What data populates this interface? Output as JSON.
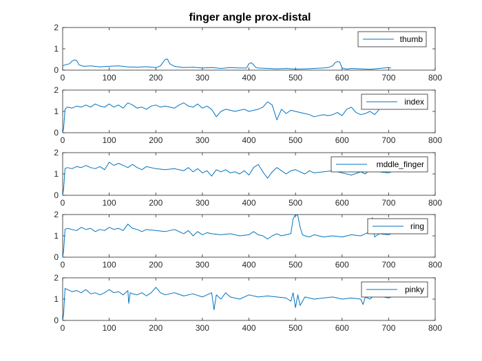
{
  "figure": {
    "title": "finger angle prox-distal",
    "line_color": "#0072BD"
  },
  "chart_data": [
    {
      "type": "line",
      "xlim": [
        0,
        800
      ],
      "ylim": [
        0,
        2
      ],
      "xticks": [
        0,
        100,
        200,
        300,
        400,
        500,
        600,
        700,
        800
      ],
      "yticks": [
        0,
        1,
        2
      ],
      "legend": {
        "placement": "top-right"
      },
      "series": [
        {
          "name": "thumb",
          "x": [
            0,
            5,
            15,
            20,
            25,
            30,
            35,
            45,
            60,
            80,
            100,
            120,
            140,
            160,
            180,
            200,
            210,
            215,
            220,
            225,
            230,
            240,
            260,
            280,
            300,
            320,
            340,
            360,
            380,
            395,
            400,
            405,
            410,
            415,
            420,
            440,
            460,
            480,
            500,
            520,
            540,
            560,
            570,
            580,
            585,
            590,
            595,
            600,
            610,
            620,
            640,
            660,
            680,
            700,
            705
          ],
          "y": [
            0.2,
            0.25,
            0.3,
            0.42,
            0.48,
            0.45,
            0.25,
            0.18,
            0.2,
            0.15,
            0.18,
            0.2,
            0.15,
            0.14,
            0.16,
            0.12,
            0.2,
            0.35,
            0.5,
            0.52,
            0.3,
            0.18,
            0.12,
            0.14,
            0.1,
            0.12,
            0.08,
            0.12,
            0.1,
            0.1,
            0.3,
            0.35,
            0.25,
            0.12,
            0.1,
            0.08,
            0.06,
            0.08,
            0.05,
            0.06,
            0.08,
            0.1,
            0.12,
            0.2,
            0.35,
            0.4,
            0.38,
            0.1,
            0.05,
            0.08,
            0.06,
            0.04,
            0.08,
            0.12,
            0.1
          ]
        }
      ]
    },
    {
      "type": "line",
      "xlim": [
        0,
        800
      ],
      "ylim": [
        0,
        2
      ],
      "xticks": [
        0,
        100,
        200,
        300,
        400,
        500,
        600,
        700,
        800
      ],
      "yticks": [
        0,
        1,
        2
      ],
      "legend": {
        "placement": "top-right"
      },
      "series": [
        {
          "name": "index",
          "x": [
            0,
            2,
            5,
            10,
            20,
            30,
            40,
            50,
            60,
            70,
            80,
            90,
            100,
            110,
            120,
            130,
            140,
            150,
            160,
            170,
            180,
            190,
            200,
            210,
            220,
            240,
            250,
            260,
            270,
            280,
            290,
            300,
            310,
            320,
            330,
            340,
            350,
            360,
            370,
            380,
            390,
            400,
            410,
            420,
            430,
            440,
            450,
            460,
            470,
            480,
            490,
            500,
            510,
            520,
            530,
            540,
            550,
            560,
            570,
            580,
            590,
            600,
            610,
            620,
            630,
            640,
            650,
            660,
            670,
            680,
            690,
            700,
            705
          ],
          "y": [
            0,
            0.2,
            1.1,
            1.2,
            1.15,
            1.25,
            1.2,
            1.3,
            1.2,
            1.35,
            1.25,
            1.2,
            1.35,
            1.2,
            1.3,
            1.15,
            1.4,
            1.3,
            1.15,
            1.2,
            1.1,
            1.25,
            1.3,
            1.2,
            1.25,
            1.15,
            1.3,
            1.4,
            1.25,
            1.2,
            1.35,
            1.15,
            1.25,
            1.1,
            0.75,
            1.0,
            1.1,
            1.05,
            1.0,
            1.05,
            1.1,
            1.0,
            1.05,
            1.1,
            1.2,
            1.45,
            1.3,
            0.6,
            1.1,
            0.9,
            1.05,
            1.0,
            0.95,
            0.9,
            0.85,
            0.75,
            0.8,
            0.85,
            0.8,
            0.85,
            0.95,
            0.8,
            1.1,
            1.2,
            0.95,
            0.85,
            0.9,
            1.0,
            0.85,
            1.1,
            1.3,
            1.2,
            1.15
          ]
        }
      ]
    },
    {
      "type": "line",
      "xlim": [
        0,
        800
      ],
      "ylim": [
        0,
        2
      ],
      "xticks": [
        0,
        100,
        200,
        300,
        400,
        500,
        600,
        700,
        800
      ],
      "yticks": [
        0,
        1,
        2
      ],
      "legend": {
        "placement": "top-right"
      },
      "series": [
        {
          "name": "mddle_finger",
          "x": [
            0,
            2,
            5,
            10,
            20,
            30,
            40,
            50,
            60,
            70,
            80,
            90,
            100,
            110,
            120,
            130,
            140,
            150,
            160,
            170,
            180,
            200,
            220,
            240,
            260,
            270,
            280,
            290,
            300,
            310,
            320,
            330,
            340,
            350,
            360,
            370,
            380,
            390,
            400,
            410,
            420,
            430,
            440,
            450,
            460,
            470,
            480,
            490,
            500,
            510,
            520,
            530,
            540,
            560,
            580,
            600,
            620,
            640,
            650,
            660,
            680,
            700,
            705
          ],
          "y": [
            0,
            0.3,
            1.25,
            1.3,
            1.25,
            1.35,
            1.3,
            1.4,
            1.3,
            1.25,
            1.35,
            1.2,
            1.55,
            1.4,
            1.5,
            1.4,
            1.3,
            1.45,
            1.3,
            1.2,
            1.35,
            1.25,
            1.2,
            1.25,
            1.15,
            1.3,
            1.1,
            1.25,
            1.05,
            1.15,
            0.9,
            1.2,
            1.1,
            1.2,
            1.05,
            1.1,
            1.0,
            1.15,
            0.95,
            1.3,
            1.45,
            1.1,
            0.8,
            1.1,
            1.3,
            1.15,
            1.0,
            1.15,
            1.2,
            1.1,
            1.0,
            1.15,
            1.05,
            1.1,
            1.15,
            1.05,
            0.95,
            1.1,
            1.0,
            1.25,
            1.1,
            1.05,
            1.1
          ]
        }
      ]
    },
    {
      "type": "line",
      "xlim": [
        0,
        800
      ],
      "ylim": [
        0,
        2
      ],
      "xticks": [
        0,
        100,
        200,
        300,
        400,
        500,
        600,
        700,
        800
      ],
      "yticks": [
        0,
        1,
        2
      ],
      "legend": {
        "placement": "top-right"
      },
      "series": [
        {
          "name": "ring",
          "x": [
            0,
            2,
            5,
            10,
            20,
            30,
            40,
            50,
            60,
            70,
            80,
            90,
            100,
            110,
            120,
            130,
            140,
            150,
            160,
            170,
            180,
            200,
            220,
            240,
            260,
            270,
            280,
            290,
            300,
            310,
            320,
            340,
            360,
            380,
            400,
            410,
            420,
            430,
            440,
            450,
            460,
            470,
            480,
            490,
            495,
            500,
            505,
            510,
            515,
            520,
            530,
            540,
            560,
            580,
            600,
            620,
            640,
            650,
            660,
            665,
            670,
            680,
            700,
            705
          ],
          "y": [
            0,
            0.3,
            1.3,
            1.35,
            1.3,
            1.25,
            1.4,
            1.3,
            1.35,
            1.2,
            1.3,
            1.25,
            1.4,
            1.3,
            1.35,
            1.25,
            1.55,
            1.35,
            1.3,
            1.2,
            1.3,
            1.25,
            1.2,
            1.3,
            1.1,
            1.25,
            1.0,
            1.2,
            1.05,
            1.15,
            1.1,
            1.05,
            1.1,
            1.0,
            1.05,
            1.2,
            1.05,
            1.0,
            0.85,
            1.0,
            1.1,
            1.0,
            1.05,
            1.1,
            1.8,
            2.0,
            1.95,
            1.4,
            1.05,
            1.0,
            0.95,
            1.05,
            0.95,
            1.0,
            0.95,
            1.05,
            1.0,
            1.1,
            1.2,
            1.85,
            0.95,
            1.1,
            1.05,
            1.1
          ]
        }
      ]
    },
    {
      "type": "line",
      "xlim": [
        0,
        800
      ],
      "ylim": [
        0,
        2
      ],
      "xticks": [
        0,
        100,
        200,
        300,
        400,
        500,
        600,
        700,
        800
      ],
      "yticks": [
        0,
        1,
        2
      ],
      "legend": {
        "placement": "top-right"
      },
      "series": [
        {
          "name": "pinky",
          "x": [
            0,
            2,
            5,
            10,
            20,
            30,
            40,
            50,
            60,
            70,
            80,
            90,
            100,
            110,
            120,
            130,
            140,
            142,
            145,
            150,
            160,
            170,
            180,
            190,
            200,
            210,
            220,
            240,
            260,
            280,
            300,
            310,
            320,
            325,
            330,
            340,
            350,
            360,
            380,
            400,
            420,
            440,
            460,
            480,
            490,
            495,
            500,
            505,
            510,
            520,
            540,
            560,
            580,
            600,
            620,
            640,
            645,
            650,
            660,
            670,
            680,
            700,
            705
          ],
          "y": [
            0,
            0.3,
            1.5,
            1.45,
            1.35,
            1.4,
            1.3,
            1.45,
            1.25,
            1.3,
            1.2,
            1.3,
            1.45,
            1.3,
            1.35,
            1.2,
            1.4,
            0.8,
            1.3,
            1.25,
            1.2,
            1.3,
            1.15,
            1.3,
            1.55,
            1.3,
            1.2,
            1.3,
            1.15,
            1.25,
            1.1,
            1.2,
            1.3,
            0.5,
            1.2,
            1.0,
            1.3,
            1.1,
            1.0,
            1.2,
            1.1,
            1.15,
            1.1,
            1.05,
            0.9,
            1.3,
            0.6,
            1.2,
            0.7,
            1.1,
            1.0,
            1.05,
            1.1,
            1.0,
            1.05,
            1.0,
            0.75,
            1.1,
            1.0,
            1.2,
            1.15,
            1.05,
            1.1
          ]
        }
      ]
    }
  ]
}
